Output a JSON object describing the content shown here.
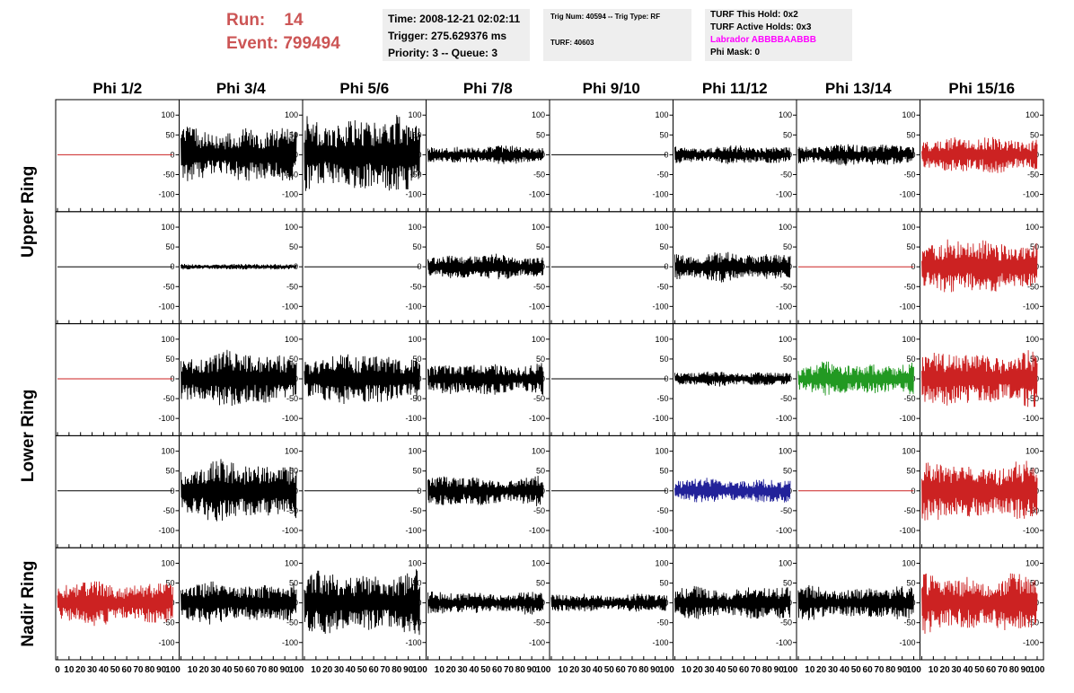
{
  "header": {
    "run_label": "Run:",
    "run_value": "14",
    "event_label": "Event:",
    "event_value": "799494",
    "time": "Time: 2008-12-21 02:02:11",
    "trigger": "Trigger: 275.629376 ms",
    "priority": "Priority: 3 -- Queue: 3",
    "trig_num": "Trig Num: 40594 -- Trig Type: RF",
    "turf": "TURF: 40603",
    "turf_this_hold": "TURF This Hold: 0x2",
    "turf_active_holds": "TURF Active Holds: 0x3",
    "labrador": "Labrador ABBBBAABBB",
    "phi_mask": "Phi Mask: 0"
  },
  "colors": {
    "header_red": "#cc5555",
    "labrador_magenta": "#ff00ff",
    "panel_bg": "#eeeeee",
    "trace_black": "#000000",
    "trace_red": "#cc2222",
    "trace_green": "#229922",
    "trace_blue": "#222299"
  },
  "chart_data": {
    "type": "line",
    "columns": [
      "Phi 1/2",
      "Phi 3/4",
      "Phi 5/6",
      "Phi 7/8",
      "Phi 9/10",
      "Phi 11/12",
      "Phi 13/14",
      "Phi 15/16"
    ],
    "ring_labels": [
      "Upper Ring",
      "Lower Ring",
      "Nadir Ring"
    ],
    "rows_per_ring": [
      2,
      2,
      1
    ],
    "xlim": [
      0,
      100
    ],
    "xticks": [
      0,
      10,
      20,
      30,
      40,
      50,
      60,
      70,
      80,
      90,
      100
    ],
    "ylim": [
      -130,
      130
    ],
    "yticks": [
      -100,
      -50,
      0,
      50,
      100
    ],
    "panels": [
      [
        {
          "color": "red",
          "amp": 0
        },
        {
          "color": "black",
          "amp": 75
        },
        {
          "color": "black",
          "amp": 105
        },
        {
          "color": "black",
          "amp": 25
        },
        {
          "color": "black",
          "amp": 0
        },
        {
          "color": "black",
          "amp": 25
        },
        {
          "color": "black",
          "amp": 30
        },
        {
          "color": "red",
          "amp": 50
        }
      ],
      [
        {
          "color": "black",
          "amp": 0
        },
        {
          "color": "black",
          "amp": 8
        },
        {
          "color": "black",
          "amp": 0
        },
        {
          "color": "black",
          "amp": 35
        },
        {
          "color": "black",
          "amp": 0
        },
        {
          "color": "black",
          "amp": 40
        },
        {
          "color": "red",
          "amp": 0
        },
        {
          "color": "red",
          "amp": 75
        }
      ],
      [
        {
          "color": "red",
          "amp": 0
        },
        {
          "color": "black",
          "amp": 75
        },
        {
          "color": "black",
          "amp": 70
        },
        {
          "color": "black",
          "amp": 45
        },
        {
          "color": "black",
          "amp": 0
        },
        {
          "color": "black",
          "amp": 20
        },
        {
          "color": "green",
          "amp": 45
        },
        {
          "color": "red",
          "amp": 75
        }
      ],
      [
        {
          "color": "black",
          "amp": 0
        },
        {
          "color": "black",
          "amp": 85
        },
        {
          "color": "black",
          "amp": 0
        },
        {
          "color": "black",
          "amp": 40
        },
        {
          "color": "black",
          "amp": 0
        },
        {
          "color": "blue",
          "amp": 35
        },
        {
          "color": "red",
          "amp": 0
        },
        {
          "color": "red",
          "amp": 80
        }
      ],
      [
        {
          "color": "red",
          "amp": 60
        },
        {
          "color": "black",
          "amp": 55
        },
        {
          "color": "black",
          "amp": 85
        },
        {
          "color": "black",
          "amp": 30
        },
        {
          "color": "black",
          "amp": 25
        },
        {
          "color": "black",
          "amp": 45
        },
        {
          "color": "black",
          "amp": 45
        },
        {
          "color": "red",
          "amp": 80
        }
      ]
    ]
  }
}
